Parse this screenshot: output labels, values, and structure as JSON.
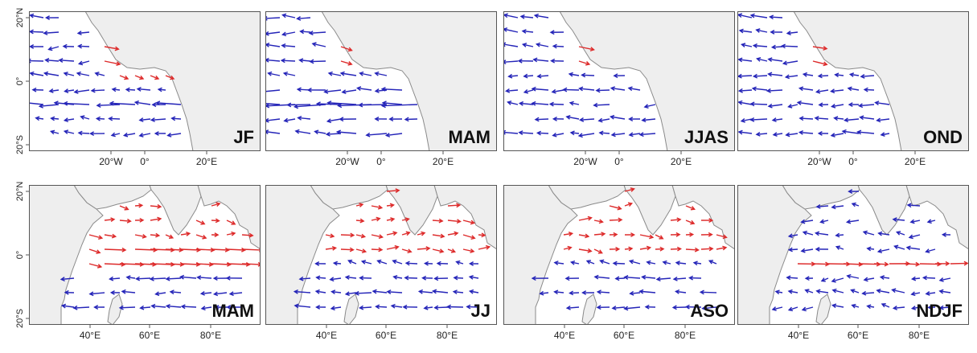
{
  "figure": {
    "colors": {
      "land": "#eeeeee",
      "coast": "#8a8a8a",
      "ocean": "#ffffff",
      "frame": "#555555",
      "positive_arrow": "#dd2a2a",
      "negative_arrow": "#2424b8"
    },
    "rows": [
      {
        "region": "Atlantic",
        "lat_ticks": [
          "20°N",
          "0°",
          "20°S"
        ],
        "lon_ticks": [
          "20°W",
          "0°",
          "20°E"
        ],
        "panels": [
          {
            "season": "JF"
          },
          {
            "season": "MAM"
          },
          {
            "season": "JJAS"
          },
          {
            "season": "OND"
          }
        ]
      },
      {
        "region": "Indian Ocean",
        "lat_ticks": [
          "20°N",
          "0°",
          "20°S"
        ],
        "lon_ticks": [
          "40°E",
          "60°E",
          "80°E"
        ],
        "panels": [
          {
            "season": "MAM"
          },
          {
            "season": "JJ"
          },
          {
            "season": "ASO"
          },
          {
            "season": "NDJF"
          }
        ]
      }
    ]
  }
}
